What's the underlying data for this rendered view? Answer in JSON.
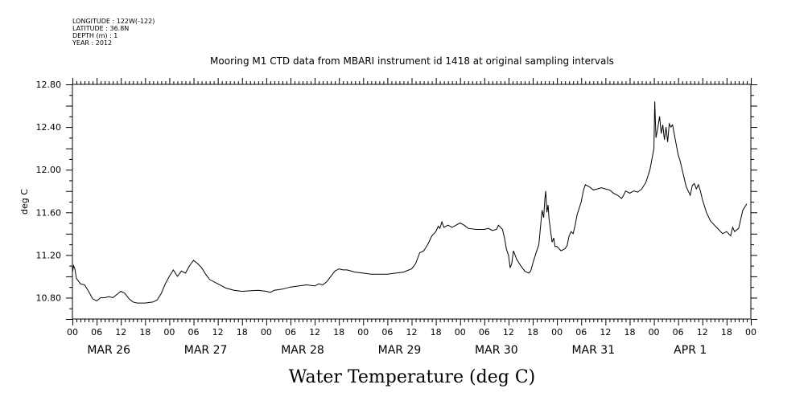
{
  "meta": {
    "longitude": "LONGITUDE : 122W(-122)",
    "latitude": "LATITUDE : 36.8N",
    "depth": "DEPTH (m) : 1",
    "year": "YEAR : 2012"
  },
  "chart_data": {
    "type": "line",
    "title": "Mooring M1 CTD data from MBARI instrument id 1418 at original sampling intervals",
    "caption": "Water Temperature (deg C)",
    "ylabel": "deg C",
    "xlabel": "",
    "ylim": [
      10.6,
      12.8
    ],
    "yticks": [
      "10.80",
      "11.20",
      "11.60",
      "12.00",
      "12.40",
      "12.80"
    ],
    "hour_tick_labels": [
      "00",
      "06",
      "12",
      "18"
    ],
    "day_labels": [
      {
        "day": 0,
        "label": "MAR 26"
      },
      {
        "day": 1,
        "label": "MAR 27"
      },
      {
        "day": 2,
        "label": "MAR 28"
      },
      {
        "day": 3,
        "label": "MAR 29"
      },
      {
        "day": 4,
        "label": "MAR 30"
      },
      {
        "day": 5,
        "label": "MAR 31"
      },
      {
        "day": 6,
        "label": "APR  1"
      }
    ],
    "x_range_hours": [
      0,
      168
    ],
    "grid": false,
    "x_unit": "hours from MAR 26 00:00",
    "series": [
      {
        "color": "#000000",
        "points": [
          [
            0,
            11.04
          ],
          [
            0.3,
            11.1
          ],
          [
            0.6,
            11.07
          ],
          [
            1,
            10.98
          ],
          [
            2,
            10.93
          ],
          [
            3,
            10.92
          ],
          [
            4,
            10.86
          ],
          [
            5,
            10.79
          ],
          [
            6,
            10.77
          ],
          [
            7,
            10.8
          ],
          [
            8,
            10.8
          ],
          [
            9,
            10.81
          ],
          [
            10,
            10.8
          ],
          [
            11,
            10.83
          ],
          [
            12,
            10.86
          ],
          [
            13,
            10.84
          ],
          [
            14,
            10.79
          ],
          [
            15,
            10.76
          ],
          [
            16,
            10.75
          ],
          [
            18,
            10.75
          ],
          [
            20,
            10.76
          ],
          [
            21,
            10.78
          ],
          [
            22,
            10.84
          ],
          [
            23,
            10.93
          ],
          [
            24,
            11.0
          ],
          [
            25,
            11.06
          ],
          [
            26,
            11.0
          ],
          [
            27,
            11.05
          ],
          [
            28,
            11.03
          ],
          [
            29,
            11.1
          ],
          [
            30,
            11.15
          ],
          [
            31,
            11.12
          ],
          [
            32,
            11.08
          ],
          [
            33,
            11.02
          ],
          [
            34,
            10.97
          ],
          [
            36,
            10.93
          ],
          [
            38,
            10.89
          ],
          [
            40,
            10.87
          ],
          [
            42,
            10.86
          ],
          [
            46,
            10.87
          ],
          [
            48,
            10.86
          ],
          [
            49,
            10.85
          ],
          [
            50,
            10.87
          ],
          [
            52,
            10.88
          ],
          [
            54,
            10.9
          ],
          [
            56,
            10.91
          ],
          [
            58,
            10.92
          ],
          [
            60,
            10.91
          ],
          [
            61,
            10.93
          ],
          [
            62,
            10.92
          ],
          [
            63,
            10.95
          ],
          [
            64,
            11.0
          ],
          [
            65,
            11.05
          ],
          [
            66,
            11.07
          ],
          [
            67,
            11.06
          ],
          [
            68,
            11.06
          ],
          [
            70,
            11.04
          ],
          [
            72,
            11.03
          ],
          [
            74,
            11.02
          ],
          [
            76,
            11.02
          ],
          [
            78,
            11.02
          ],
          [
            80,
            11.03
          ],
          [
            82,
            11.04
          ],
          [
            84,
            11.07
          ],
          [
            85,
            11.12
          ],
          [
            86,
            11.22
          ],
          [
            87,
            11.24
          ],
          [
            88,
            11.3
          ],
          [
            89,
            11.38
          ],
          [
            90,
            11.42
          ],
          [
            90.6,
            11.47
          ],
          [
            91,
            11.45
          ],
          [
            91.5,
            11.51
          ],
          [
            92,
            11.46
          ],
          [
            93,
            11.48
          ],
          [
            94,
            11.46
          ],
          [
            95,
            11.48
          ],
          [
            96,
            11.5
          ],
          [
            97,
            11.48
          ],
          [
            98,
            11.45
          ],
          [
            100,
            11.44
          ],
          [
            102,
            11.44
          ],
          [
            103,
            11.45
          ],
          [
            104,
            11.43
          ],
          [
            105,
            11.44
          ],
          [
            105.5,
            11.48
          ],
          [
            106,
            11.46
          ],
          [
            106.5,
            11.44
          ],
          [
            107,
            11.36
          ],
          [
            107.5,
            11.25
          ],
          [
            108,
            11.2
          ],
          [
            108.4,
            11.08
          ],
          [
            108.8,
            11.12
          ],
          [
            109.2,
            11.24
          ],
          [
            110,
            11.16
          ],
          [
            111,
            11.1
          ],
          [
            112,
            11.05
          ],
          [
            113,
            11.03
          ],
          [
            113.5,
            11.05
          ],
          [
            114,
            11.12
          ],
          [
            114.8,
            11.22
          ],
          [
            115.5,
            11.3
          ],
          [
            116,
            11.5
          ],
          [
            116.3,
            11.62
          ],
          [
            116.7,
            11.55
          ],
          [
            117,
            11.73
          ],
          [
            117.2,
            11.8
          ],
          [
            117.5,
            11.6
          ],
          [
            117.8,
            11.67
          ],
          [
            118,
            11.55
          ],
          [
            118.5,
            11.4
          ],
          [
            118.8,
            11.32
          ],
          [
            119.2,
            11.36
          ],
          [
            119.5,
            11.28
          ],
          [
            120,
            11.28
          ],
          [
            121,
            11.24
          ],
          [
            122,
            11.26
          ],
          [
            122.5,
            11.29
          ],
          [
            123,
            11.38
          ],
          [
            123.5,
            11.42
          ],
          [
            124,
            11.4
          ],
          [
            124.5,
            11.48
          ],
          [
            125,
            11.58
          ],
          [
            126,
            11.7
          ],
          [
            126.5,
            11.8
          ],
          [
            127,
            11.86
          ],
          [
            128,
            11.84
          ],
          [
            129,
            11.81
          ],
          [
            130,
            11.82
          ],
          [
            131,
            11.83
          ],
          [
            132,
            11.82
          ],
          [
            133,
            11.81
          ],
          [
            134,
            11.78
          ],
          [
            135,
            11.76
          ],
          [
            136,
            11.73
          ],
          [
            136.5,
            11.76
          ],
          [
            137,
            11.8
          ],
          [
            138,
            11.78
          ],
          [
            139,
            11.8
          ],
          [
            140,
            11.79
          ],
          [
            141,
            11.82
          ],
          [
            142,
            11.88
          ],
          [
            142.6,
            11.95
          ],
          [
            143,
            12.0
          ],
          [
            143.4,
            12.08
          ],
          [
            144,
            12.2
          ],
          [
            144.2,
            12.64
          ],
          [
            144.5,
            12.3
          ],
          [
            145,
            12.4
          ],
          [
            145.4,
            12.5
          ],
          [
            145.8,
            12.34
          ],
          [
            146.2,
            12.42
          ],
          [
            146.6,
            12.28
          ],
          [
            147,
            12.4
          ],
          [
            147.4,
            12.26
          ],
          [
            147.8,
            12.43
          ],
          [
            148.2,
            12.4
          ],
          [
            148.6,
            12.42
          ],
          [
            149,
            12.34
          ],
          [
            149.5,
            12.24
          ],
          [
            150,
            12.14
          ],
          [
            150.5,
            12.08
          ],
          [
            151,
            12.0
          ],
          [
            151.5,
            11.92
          ],
          [
            152,
            11.84
          ],
          [
            152.5,
            11.8
          ],
          [
            153,
            11.76
          ],
          [
            153.5,
            11.85
          ],
          [
            154,
            11.87
          ],
          [
            154.5,
            11.82
          ],
          [
            155,
            11.86
          ],
          [
            155.5,
            11.8
          ],
          [
            156,
            11.72
          ],
          [
            157,
            11.6
          ],
          [
            158,
            11.52
          ],
          [
            159,
            11.48
          ],
          [
            160,
            11.44
          ],
          [
            161,
            11.4
          ],
          [
            162,
            11.42
          ],
          [
            163,
            11.38
          ],
          [
            163.5,
            11.46
          ],
          [
            164,
            11.42
          ],
          [
            165,
            11.45
          ],
          [
            166,
            11.62
          ],
          [
            167,
            11.68
          ]
        ]
      }
    ]
  }
}
